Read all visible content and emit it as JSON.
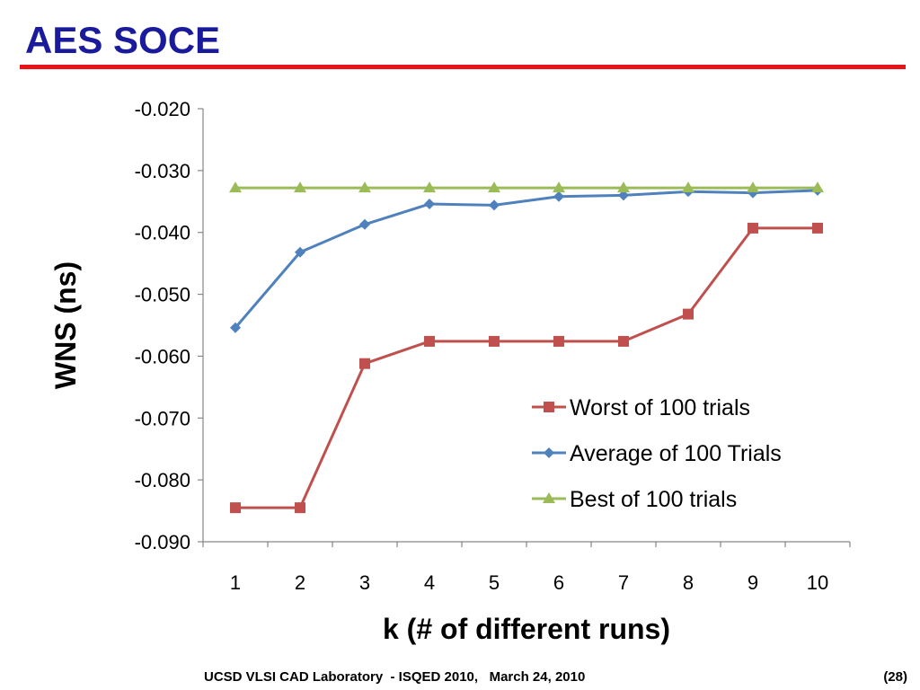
{
  "slide": {
    "title": "AES SOCE",
    "footer_left": "UCSD VLSI CAD Laboratory  - ISQED 2010,   March 24, 2010",
    "footer_right": "(28)",
    "colors": {
      "title": "#1a1a9c",
      "rule": "#e8141a"
    }
  },
  "chart_data": {
    "type": "line",
    "title": "",
    "xlabel": "k (# of different runs)",
    "ylabel": "WNS (ns)",
    "categories": [
      "1",
      "2",
      "3",
      "4",
      "5",
      "6",
      "7",
      "8",
      "9",
      "10"
    ],
    "ylim": [
      -0.09,
      -0.02
    ],
    "yticks": [
      "-0.020",
      "-0.030",
      "-0.040",
      "-0.050",
      "-0.060",
      "-0.070",
      "-0.080",
      "-0.090"
    ],
    "ytick_values": [
      -0.02,
      -0.03,
      -0.04,
      -0.05,
      -0.06,
      -0.07,
      -0.08,
      -0.09
    ],
    "grid": false,
    "legend_position": "right",
    "series": [
      {
        "name": "Worst of 100 trials",
        "color": "#c0504d",
        "marker": "square",
        "values": [
          -0.0845,
          -0.0845,
          -0.0612,
          -0.0576,
          -0.0576,
          -0.0576,
          -0.0576,
          -0.0532,
          -0.0393,
          -0.0393
        ]
      },
      {
        "name": "Average of 100 Trials",
        "color": "#4f81bd",
        "marker": "diamond",
        "values": [
          -0.0554,
          -0.0432,
          -0.0387,
          -0.0354,
          -0.0356,
          -0.0342,
          -0.034,
          -0.0334,
          -0.0336,
          -0.0332
        ]
      },
      {
        "name": "Best of 100 trials",
        "color": "#9bbb59",
        "marker": "triangle",
        "values": [
          -0.0328,
          -0.0328,
          -0.0328,
          -0.0328,
          -0.0328,
          -0.0328,
          -0.0328,
          -0.0328,
          -0.0328,
          -0.0328
        ]
      }
    ]
  }
}
